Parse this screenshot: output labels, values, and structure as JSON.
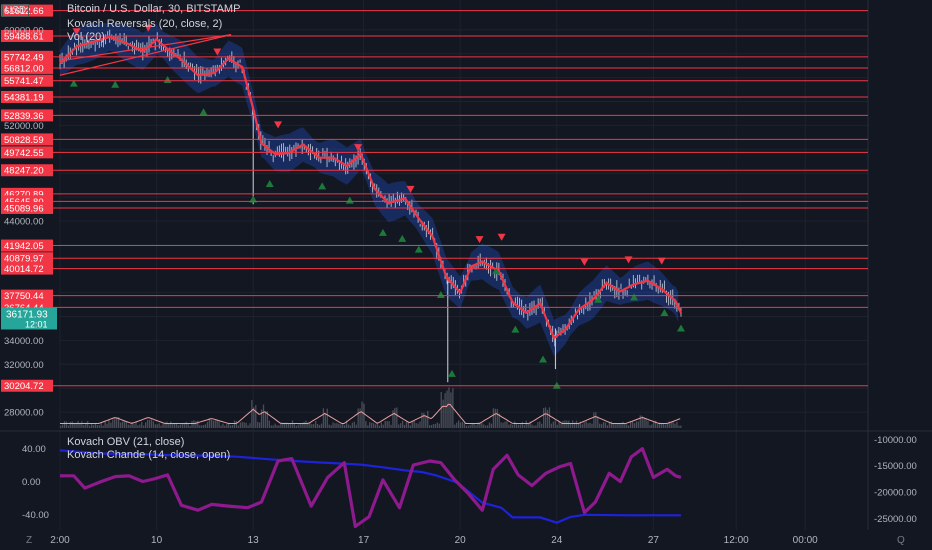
{
  "header": {
    "currency": "USD",
    "title": "Bitcoin / U.S. Dollar, 30, BITSTAMP",
    "study1": "Kovach Reversals (20, close, 2)",
    "study2": "Vol (20)",
    "study3": "Kovach OBV (21, close)",
    "study4": "Kovach Chande (14, close, open)",
    "left_icon": "Z",
    "right_icon": "Q"
  },
  "colors": {
    "background": "#131722",
    "level_line": "#f23645",
    "level_label_bg": "#f23645",
    "price_label_bg": "#26a69a",
    "band": "#2962ff",
    "avg_line": "#f23645",
    "candles": "#d1d4dc",
    "bull_marker": "#1b7a3a",
    "bear_marker": "#f23645",
    "obv_line": "#1e22d9",
    "chande_line": "#8e1a8e",
    "volume": "#787b86",
    "volume_ma": "#e9a0a0"
  },
  "chart_data": [
    {
      "type": "candlestick",
      "title": "Bitcoin / U.S. Dollar, 30, BITSTAMP",
      "ylim": [
        26500,
        62500
      ],
      "y_ticks": [
        28000,
        30000,
        32000,
        34000,
        36000,
        38000,
        40000,
        42000,
        44000,
        46000,
        48000,
        50000,
        52000,
        54000,
        56000,
        58000,
        60000
      ],
      "y_tick_labels": [
        "28000.00",
        "",
        "32000.00",
        "34000.00",
        "",
        "",
        "",
        "",
        "44000.00",
        "",
        "",
        "",
        "52000.00",
        "",
        "",
        "",
        "60000.00"
      ],
      "x_ticks": [
        {
          "pos": 0.0,
          "label": "2:00"
        },
        {
          "pos": 3.5,
          "label": "10"
        },
        {
          "pos": 7.0,
          "label": "13"
        },
        {
          "pos": 11.0,
          "label": "17"
        },
        {
          "pos": 14.5,
          "label": "20"
        },
        {
          "pos": 18.0,
          "label": "24"
        },
        {
          "pos": 21.5,
          "label": "27"
        },
        {
          "pos": 24.5,
          "label": "12:00"
        },
        {
          "pos": 27.0,
          "label": "00:00"
        }
      ],
      "xlim": [
        0,
        28.5
      ],
      "levels": [
        61612.66,
        59488.61,
        57742.49,
        56812.0,
        55741.47,
        54381.19,
        52839.36,
        50828.59,
        49742.55,
        48247.2,
        46270.89,
        45645.8,
        45089.96,
        41942.05,
        40879.97,
        40014.72,
        37750.44,
        36764.44,
        30204.72
      ],
      "last_price": {
        "value": 36171.93,
        "countdown": "12:01"
      },
      "price_path": [
        [
          0,
          57200
        ],
        [
          0.6,
          58600
        ],
        [
          1.2,
          59000
        ],
        [
          1.8,
          59400
        ],
        [
          2.4,
          58900
        ],
        [
          3.0,
          58200
        ],
        [
          3.5,
          59200
        ],
        [
          4.0,
          58200
        ],
        [
          4.4,
          57500
        ],
        [
          5.0,
          56200
        ],
        [
          5.6,
          56400
        ],
        [
          6.1,
          57600
        ],
        [
          6.6,
          56900
        ],
        [
          7.0,
          53400
        ],
        [
          7.3,
          50500
        ],
        [
          7.8,
          49600
        ],
        [
          8.3,
          49700
        ],
        [
          8.8,
          50400
        ],
        [
          9.4,
          49300
        ],
        [
          9.9,
          49300
        ],
        [
          10.4,
          48600
        ],
        [
          10.9,
          49600
        ],
        [
          11.4,
          46700
        ],
        [
          11.9,
          45500
        ],
        [
          12.5,
          45900
        ],
        [
          13.0,
          44200
        ],
        [
          13.5,
          42700
        ],
        [
          14.0,
          39300
        ],
        [
          14.5,
          38000
        ],
        [
          14.9,
          40200
        ],
        [
          15.3,
          40600
        ],
        [
          15.9,
          39800
        ],
        [
          16.4,
          37200
        ],
        [
          16.9,
          36300
        ],
        [
          17.4,
          37100
        ],
        [
          17.9,
          34200
        ],
        [
          18.3,
          34900
        ],
        [
          18.8,
          36600
        ],
        [
          19.3,
          37400
        ],
        [
          19.8,
          38800
        ],
        [
          20.3,
          38100
        ],
        [
          20.8,
          38700
        ],
        [
          21.3,
          39000
        ],
        [
          21.8,
          38300
        ],
        [
          22.3,
          37300
        ],
        [
          22.5,
          36300
        ]
      ],
      "bear_markers": [
        [
          0.6,
          59800
        ],
        [
          3.2,
          60100
        ],
        [
          5.7,
          58100
        ],
        [
          7.9,
          52000
        ],
        [
          10.8,
          50100
        ],
        [
          12.7,
          46600
        ],
        [
          15.2,
          42400
        ],
        [
          16.0,
          42600
        ],
        [
          19.0,
          40500
        ],
        [
          20.6,
          40700
        ],
        [
          21.8,
          40600
        ]
      ],
      "bull_markers": [
        [
          0.5,
          55500
        ],
        [
          2.0,
          55400
        ],
        [
          3.9,
          55800
        ],
        [
          5.2,
          53100
        ],
        [
          7.0,
          45800
        ],
        [
          7.6,
          47100
        ],
        [
          9.5,
          46900
        ],
        [
          10.5,
          45700
        ],
        [
          11.7,
          43000
        ],
        [
          12.4,
          42500
        ],
        [
          13.0,
          41600
        ],
        [
          13.8,
          37800
        ],
        [
          14.2,
          31200
        ],
        [
          15.8,
          39800
        ],
        [
          16.5,
          34900
        ],
        [
          17.5,
          32400
        ],
        [
          18.0,
          30200
        ],
        [
          19.5,
          37400
        ],
        [
          20.8,
          37600
        ],
        [
          21.9,
          36300
        ],
        [
          22.5,
          35000
        ]
      ]
    },
    {
      "type": "bar",
      "title": "Vol (20)",
      "note": "volume histogram with moving average",
      "spikes": [
        [
          2.0,
          0.3
        ],
        [
          3.2,
          0.3
        ],
        [
          5.5,
          0.25
        ],
        [
          7.0,
          0.7
        ],
        [
          7.4,
          0.6
        ],
        [
          9.6,
          0.5
        ],
        [
          10.9,
          0.6
        ],
        [
          12.1,
          0.5
        ],
        [
          13.2,
          0.4
        ],
        [
          13.9,
          0.9
        ],
        [
          14.1,
          1.0
        ],
        [
          15.8,
          0.5
        ],
        [
          17.6,
          0.5
        ],
        [
          19.4,
          0.35
        ],
        [
          21.1,
          0.3
        ],
        [
          22.6,
          0.3
        ]
      ]
    },
    {
      "type": "line",
      "series": [
        {
          "name": "Kovach OBV (21, close)",
          "axis": "right",
          "ylim": [
            -27000,
            -9000
          ],
          "y_ticks": [
            -10000,
            -15000,
            -20000,
            -25000
          ],
          "y_tick_labels": [
            "-10000.00",
            "-15000.00",
            "-20000.00",
            "-25000.00"
          ],
          "x": [
            0,
            1.5,
            2.9,
            4.0,
            5.3,
            6.4,
            7.6,
            8.7,
            9.8,
            10.9,
            11.7,
            12.5,
            13.1,
            13.6,
            14.4,
            15.3,
            16.0,
            16.4,
            17.4,
            18.0,
            18.5,
            19.0,
            20.7,
            22.5
          ],
          "values": [
            -12100,
            -12700,
            -12800,
            -13000,
            -13100,
            -13300,
            -13800,
            -14200,
            -14500,
            -14800,
            -15300,
            -15900,
            -16200,
            -16800,
            -18200,
            -22000,
            -23000,
            -24800,
            -24800,
            -25800,
            -24700,
            -24300,
            -24400,
            -24400
          ]
        },
        {
          "name": "Kovach Chande (14, close, open)",
          "axis": "left",
          "ylim": [
            -58,
            58
          ],
          "y_ticks": [
            40,
            0,
            -40
          ],
          "y_tick_labels": [
            "40.00",
            "0.00",
            "-40.00"
          ],
          "x": [
            0,
            0.5,
            0.9,
            1.5,
            2.0,
            2.5,
            3.0,
            3.4,
            3.9,
            4.4,
            5.0,
            5.5,
            6.1,
            6.8,
            7.3,
            7.9,
            8.4,
            9.1,
            9.7,
            10.3,
            10.7,
            11.2,
            11.7,
            12.3,
            12.8,
            13.4,
            13.8,
            14.3,
            14.8,
            15.3,
            15.7,
            16.2,
            16.6,
            17.1,
            17.6,
            18.1,
            18.5,
            19.0,
            19.4,
            19.9,
            20.3,
            20.7,
            21.1,
            21.5,
            22.0,
            22.3,
            22.5
          ],
          "values": [
            7,
            7,
            -8,
            0,
            6,
            7,
            0,
            3,
            8,
            -29,
            -35,
            -28,
            -30,
            -32,
            -25,
            25,
            28,
            -30,
            5,
            23,
            -55,
            -43,
            2,
            -32,
            20,
            25,
            23,
            2,
            -15,
            -35,
            15,
            32,
            8,
            -5,
            10,
            18,
            22,
            -38,
            -25,
            10,
            0,
            30,
            40,
            5,
            15,
            7,
            5
          ]
        }
      ]
    }
  ]
}
